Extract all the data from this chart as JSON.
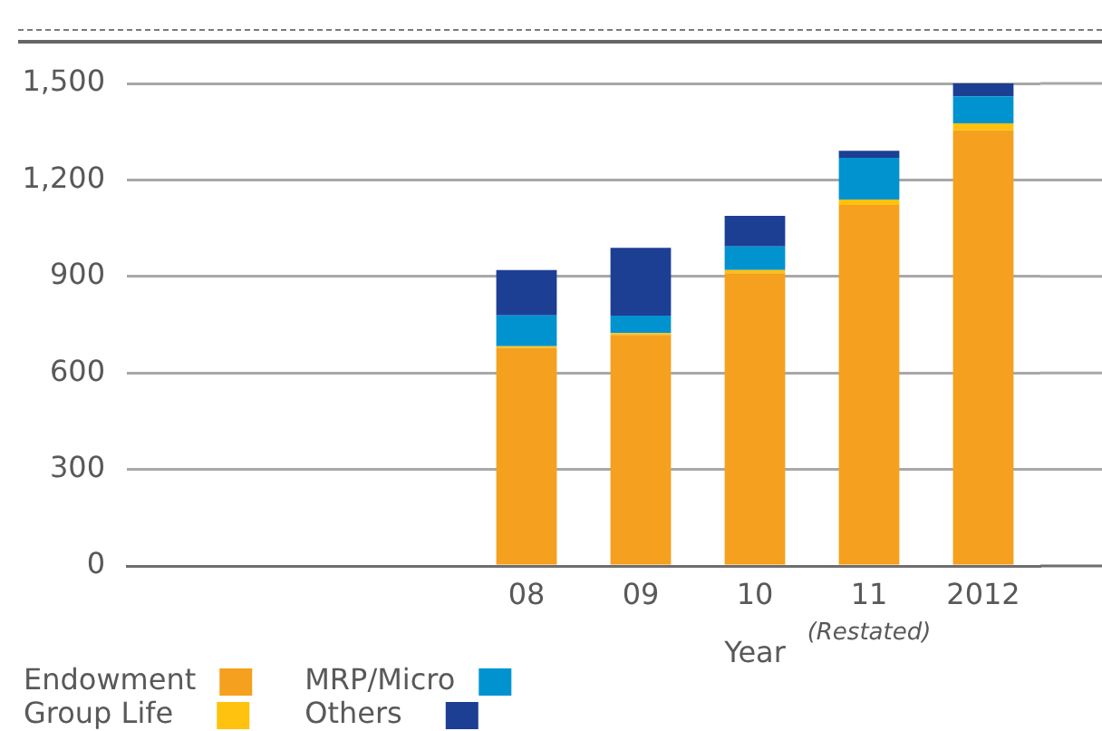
{
  "chart_data": {
    "type": "bar",
    "stacked": true,
    "xlabel": "Year",
    "categories": [
      null,
      null,
      null,
      "08",
      "09",
      "10",
      "11",
      "2012"
    ],
    "series": [
      {
        "name": "Endowment",
        "color": "#f5a01e",
        "values": [
          null,
          null,
          null,
          678,
          718,
          910,
          1122,
          1354
        ]
      },
      {
        "name": "Group Life",
        "color": "#ffc20e",
        "values": [
          null,
          null,
          null,
          5,
          6,
          10,
          17,
          22
        ]
      },
      {
        "name": "MRP/Micro",
        "color": "#0093d0",
        "values": [
          null,
          null,
          null,
          96,
          54,
          73,
          130,
          84
        ]
      },
      {
        "name": "Others",
        "color": "#1c3f94",
        "values": [
          null,
          null,
          null,
          141,
          211,
          95,
          22,
          40
        ]
      }
    ],
    "ylim": [
      0,
      1500
    ],
    "yticks": [
      0,
      300,
      600,
      900,
      {
        "value": 1200,
        "label": "1,200"
      },
      {
        "value": 1500,
        "label": "1,500"
      }
    ],
    "grid": "y",
    "legend": "bottom left",
    "annotations": [
      "(Restated)"
    ]
  }
}
